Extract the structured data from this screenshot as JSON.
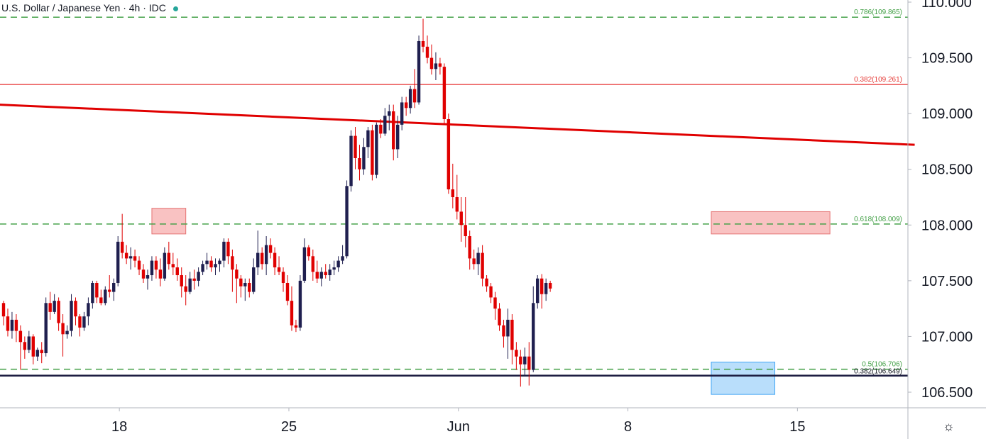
{
  "header": {
    "title": "U.S. Dollar / Japanese Yen · 4h · IDC",
    "status_color": "#26a69a"
  },
  "footer": {
    "settings_icon": "gear-icon"
  },
  "chart_data": {
    "type": "candlestick",
    "title": "U.S. Dollar / Japanese Yen · 4h · IDC",
    "ylim": [
      106.35,
      110.05
    ],
    "y_ticks": [
      "106.500",
      "107.000",
      "107.500",
      "108.000",
      "108.500",
      "109.000",
      "109.500",
      "110.000"
    ],
    "x_ticks": [
      {
        "label": "18",
        "index": 28
      },
      {
        "label": "25",
        "index": 68
      },
      {
        "label": "Jun",
        "index": 108
      },
      {
        "label": "8",
        "index": 148
      },
      {
        "label": "15",
        "index": 188
      }
    ],
    "colors": {
      "up": "#1f1f4f",
      "down": "#e00000",
      "fib": "#43a047",
      "trend": "#e00000",
      "support": "#1a1a3e"
    },
    "candles": [
      [
        107.3,
        107.32,
        107.1,
        107.18
      ],
      [
        107.18,
        107.25,
        107.0,
        107.05
      ],
      [
        107.05,
        107.22,
        106.98,
        107.15
      ],
      [
        107.15,
        107.2,
        106.95,
        107.05
      ],
      [
        107.05,
        107.1,
        106.7,
        106.95
      ],
      [
        106.95,
        107.0,
        106.8,
        106.88
      ],
      [
        106.88,
        107.05,
        106.85,
        107.0
      ],
      [
        107.0,
        107.02,
        106.75,
        106.82
      ],
      [
        106.82,
        106.9,
        106.78,
        106.88
      ],
      [
        106.88,
        106.95,
        106.76,
        106.85
      ],
      [
        106.85,
        107.35,
        106.82,
        107.3
      ],
      [
        107.3,
        107.4,
        107.15,
        107.22
      ],
      [
        107.22,
        107.38,
        107.2,
        107.32
      ],
      [
        107.32,
        107.35,
        107.05,
        107.12
      ],
      [
        107.12,
        107.2,
        106.82,
        107.02
      ],
      [
        107.02,
        107.1,
        106.98,
        107.05
      ],
      [
        107.05,
        107.38,
        107.0,
        107.32
      ],
      [
        107.32,
        107.35,
        107.1,
        107.18
      ],
      [
        107.18,
        107.2,
        107.0,
        107.08
      ],
      [
        107.08,
        107.22,
        107.05,
        107.18
      ],
      [
        107.18,
        107.35,
        107.1,
        107.3
      ],
      [
        107.3,
        107.5,
        107.25,
        107.48
      ],
      [
        107.48,
        107.5,
        107.3,
        107.35
      ],
      [
        107.35,
        107.42,
        107.28,
        107.3
      ],
      [
        107.3,
        107.45,
        107.28,
        107.42
      ],
      [
        107.42,
        107.55,
        107.35,
        107.4
      ],
      [
        107.4,
        107.52,
        107.32,
        107.48
      ],
      [
        107.48,
        107.9,
        107.45,
        107.85
      ],
      [
        107.85,
        108.1,
        107.7,
        107.75
      ],
      [
        107.75,
        107.82,
        107.65,
        107.7
      ],
      [
        107.7,
        107.8,
        107.6,
        107.72
      ],
      [
        107.72,
        107.78,
        107.62,
        107.68
      ],
      [
        107.68,
        107.72,
        107.55,
        107.6
      ],
      [
        107.6,
        107.65,
        107.48,
        107.52
      ],
      [
        107.52,
        107.6,
        107.42,
        107.55
      ],
      [
        107.55,
        107.72,
        107.5,
        107.68
      ],
      [
        107.68,
        107.72,
        107.52,
        107.6
      ],
      [
        107.6,
        107.7,
        107.45,
        107.52
      ],
      [
        107.52,
        107.8,
        107.5,
        107.75
      ],
      [
        107.75,
        107.85,
        107.6,
        107.65
      ],
      [
        107.65,
        107.75,
        107.55,
        107.62
      ],
      [
        107.62,
        107.7,
        107.5,
        107.55
      ],
      [
        107.55,
        107.62,
        107.35,
        107.45
      ],
      [
        107.45,
        107.55,
        107.28,
        107.4
      ],
      [
        107.4,
        107.58,
        107.38,
        107.52
      ],
      [
        107.52,
        107.6,
        107.42,
        107.5
      ],
      [
        107.5,
        107.62,
        107.45,
        107.58
      ],
      [
        107.58,
        107.68,
        107.55,
        107.65
      ],
      [
        107.65,
        107.75,
        107.6,
        107.68
      ],
      [
        107.68,
        107.72,
        107.58,
        107.62
      ],
      [
        107.62,
        107.7,
        107.55,
        107.65
      ],
      [
        107.65,
        107.7,
        107.58,
        107.68
      ],
      [
        107.68,
        107.88,
        107.62,
        107.85
      ],
      [
        107.85,
        107.88,
        107.65,
        107.72
      ],
      [
        107.72,
        107.78,
        107.4,
        107.6
      ],
      [
        107.6,
        107.65,
        107.3,
        107.52
      ],
      [
        107.52,
        107.55,
        107.35,
        107.45
      ],
      [
        107.45,
        107.52,
        107.32,
        107.48
      ],
      [
        107.48,
        107.52,
        107.35,
        107.4
      ],
      [
        107.4,
        107.7,
        107.38,
        107.62
      ],
      [
        107.62,
        107.95,
        107.55,
        107.75
      ],
      [
        107.75,
        107.8,
        107.6,
        107.65
      ],
      [
        107.65,
        107.9,
        107.55,
        107.82
      ],
      [
        107.82,
        107.88,
        107.7,
        107.75
      ],
      [
        107.75,
        107.8,
        107.55,
        107.62
      ],
      [
        107.62,
        107.72,
        107.55,
        107.58
      ],
      [
        107.58,
        107.62,
        107.4,
        107.48
      ],
      [
        107.48,
        107.55,
        107.28,
        107.32
      ],
      [
        107.32,
        107.45,
        107.05,
        107.1
      ],
      [
        107.1,
        107.15,
        107.04,
        107.08
      ],
      [
        107.08,
        107.55,
        107.05,
        107.5
      ],
      [
        107.5,
        107.88,
        107.48,
        107.8
      ],
      [
        107.8,
        107.82,
        107.68,
        107.72
      ],
      [
        107.72,
        107.78,
        107.5,
        107.58
      ],
      [
        107.58,
        107.68,
        107.48,
        107.52
      ],
      [
        107.52,
        107.62,
        107.45,
        107.58
      ],
      [
        107.58,
        107.65,
        107.52,
        107.55
      ],
      [
        107.55,
        107.65,
        107.5,
        107.6
      ],
      [
        107.6,
        107.68,
        107.55,
        107.62
      ],
      [
        107.62,
        107.72,
        107.58,
        107.68
      ],
      [
        107.68,
        107.82,
        107.65,
        107.72
      ],
      [
        107.72,
        108.4,
        107.7,
        108.35
      ],
      [
        108.35,
        108.85,
        108.3,
        108.8
      ],
      [
        108.8,
        108.88,
        108.5,
        108.6
      ],
      [
        108.6,
        108.72,
        108.4,
        108.5
      ],
      [
        108.5,
        108.78,
        108.45,
        108.7
      ],
      [
        108.7,
        108.88,
        108.6,
        108.85
      ],
      [
        108.85,
        108.9,
        108.4,
        108.45
      ],
      [
        108.45,
        108.92,
        108.42,
        108.9
      ],
      [
        108.9,
        108.95,
        108.78,
        108.82
      ],
      [
        108.82,
        109.05,
        108.8,
        108.98
      ],
      [
        108.98,
        109.08,
        108.85,
        109.02
      ],
      [
        109.02,
        109.08,
        108.58,
        108.68
      ],
      [
        108.68,
        108.98,
        108.6,
        108.9
      ],
      [
        108.9,
        109.15,
        108.85,
        109.1
      ],
      [
        109.1,
        109.15,
        108.98,
        109.05
      ],
      [
        109.05,
        109.25,
        109.0,
        109.22
      ],
      [
        109.22,
        109.4,
        109.05,
        109.1
      ],
      [
        109.1,
        109.7,
        109.08,
        109.65
      ],
      [
        109.65,
        109.85,
        109.55,
        109.6
      ],
      [
        109.6,
        109.7,
        109.45,
        109.5
      ],
      [
        109.5,
        109.62,
        109.35,
        109.4
      ],
      [
        109.4,
        109.55,
        109.3,
        109.45
      ],
      [
        109.45,
        109.5,
        109.35,
        109.42
      ],
      [
        109.42,
        109.45,
        108.9,
        108.95
      ],
      [
        108.95,
        109.0,
        108.28,
        108.32
      ],
      [
        108.32,
        108.55,
        108.15,
        108.25
      ],
      [
        108.25,
        108.45,
        108.05,
        108.12
      ],
      [
        108.12,
        108.25,
        107.85,
        108.0
      ],
      [
        108.0,
        108.25,
        107.8,
        107.9
      ],
      [
        107.9,
        107.95,
        107.6,
        107.7
      ],
      [
        107.7,
        107.78,
        107.6,
        107.65
      ],
      [
        107.65,
        107.8,
        107.55,
        107.75
      ],
      [
        107.75,
        107.82,
        107.45,
        107.52
      ],
      [
        107.52,
        107.55,
        107.4,
        107.45
      ],
      [
        107.45,
        107.48,
        107.3,
        107.35
      ],
      [
        107.35,
        107.4,
        107.15,
        107.25
      ],
      [
        107.25,
        107.3,
        107.05,
        107.1
      ],
      [
        107.1,
        107.15,
        106.9,
        107.0
      ],
      [
        107.0,
        107.25,
        106.8,
        107.15
      ],
      [
        107.15,
        107.2,
        106.75,
        106.88
      ],
      [
        106.88,
        106.95,
        106.7,
        106.82
      ],
      [
        106.82,
        106.88,
        106.55,
        106.75
      ],
      [
        106.75,
        106.9,
        106.65,
        106.82
      ],
      [
        106.82,
        106.95,
        106.56,
        106.7
      ],
      [
        106.7,
        107.45,
        106.68,
        107.3
      ],
      [
        107.3,
        107.55,
        107.25,
        107.52
      ],
      [
        107.52,
        107.56,
        107.25,
        107.38
      ],
      [
        107.38,
        107.52,
        107.32,
        107.48
      ],
      [
        107.48,
        107.5,
        107.4,
        107.43
      ]
    ],
    "fib_levels": [
      {
        "ratio": "0.786",
        "value": 109.865,
        "label": "0.786(109.865)",
        "style": "dashed"
      },
      {
        "ratio": "0.382",
        "value": 109.261,
        "label": "0.382(109.261)",
        "style": "solid-thin-red"
      },
      {
        "ratio": "0.618",
        "value": 108.009,
        "label": "0.618(108.009)",
        "style": "dashed"
      },
      {
        "ratio": "0.5",
        "value": 106.706,
        "label": "0.5(106.706)",
        "style": "dashed"
      },
      {
        "ratio": "0.382",
        "value": 106.649,
        "label": "0.382(106.649)",
        "style": "solid-dark"
      }
    ],
    "trendline": {
      "from": {
        "index": -1,
        "value": 109.08
      },
      "to": {
        "index": 215,
        "value": 108.72
      }
    },
    "zones": [
      {
        "color": "red",
        "x0": 35,
        "x1": 43,
        "y0": 107.92,
        "y1": 108.15
      },
      {
        "color": "red",
        "x0": 167,
        "x1": 195,
        "y0": 107.92,
        "y1": 108.12
      },
      {
        "color": "blue",
        "x0": 167,
        "x1": 182,
        "y0": 106.48,
        "y1": 106.77
      }
    ]
  }
}
